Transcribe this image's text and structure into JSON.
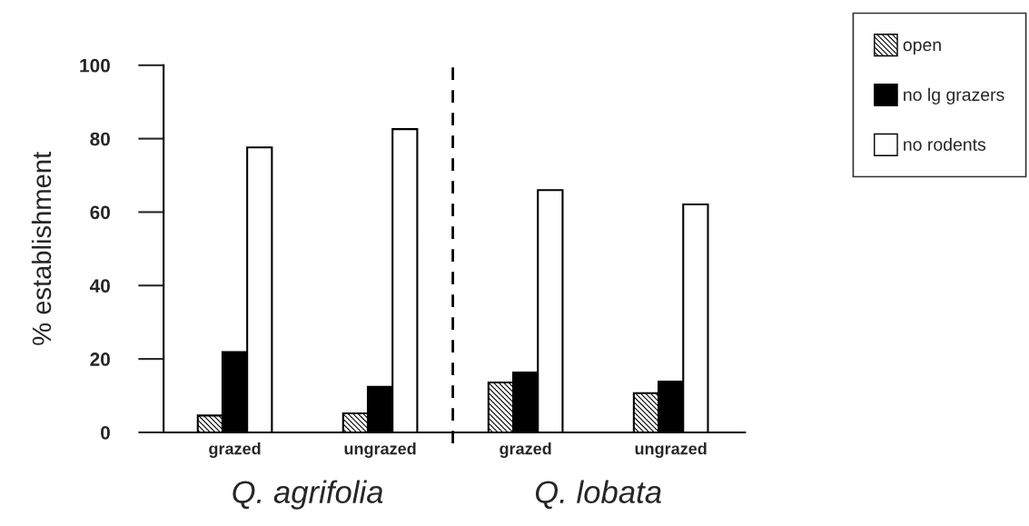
{
  "chart_data": {
    "type": "bar",
    "ylabel": "% establishment",
    "categories": [
      "grazed",
      "ungrazed",
      "grazed",
      "ungrazed"
    ],
    "series": [
      {
        "name": "open",
        "color": "#000000",
        "values": [
          4.6,
          5.2,
          13.6,
          10.7
        ]
      },
      {
        "name": "no lg grazers",
        "color": "#000000",
        "values": [
          21.9,
          12.4,
          16.3,
          13.8
        ]
      },
      {
        "name": "no rodents",
        "color": "#ffffff",
        "values": [
          77.6,
          82.6,
          66.0,
          62.1
        ]
      }
    ],
    "ylim": [
      0,
      100
    ],
    "yticks": [
      0,
      20,
      40,
      60,
      80,
      100
    ],
    "annotations": [
      "Q. agrifolia",
      "Q. lobata"
    ],
    "grid": false,
    "legend": "top right"
  }
}
